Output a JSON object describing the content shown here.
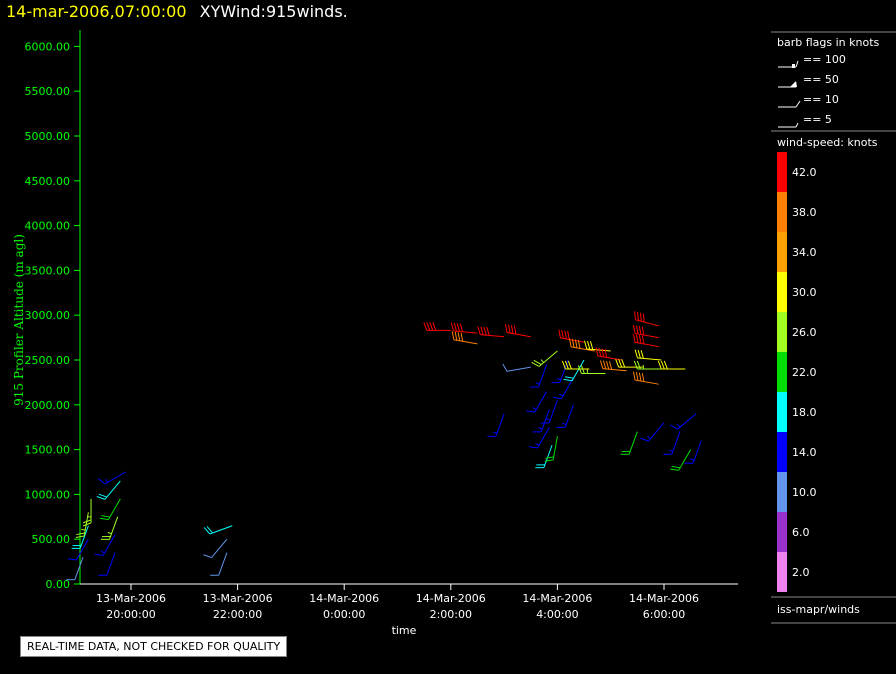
{
  "header": {
    "timestamp": "14-mar-2006,07:00:00",
    "title": "XYWind:915winds."
  },
  "notice": "REAL-TIME DATA, NOT CHECKED FOR QUALITY",
  "legend": {
    "barb_title": "barb flags in knots",
    "barb_items": [
      "== 100",
      "== 50",
      "== 10",
      "== 5"
    ],
    "speed_title": "wind-speed: knots",
    "speed_levels": [
      {
        "label": "42.0",
        "color": "#ff0000"
      },
      {
        "label": "38.0",
        "color": "#ff7f00"
      },
      {
        "label": "34.0",
        "color": "#ff9f00"
      },
      {
        "label": "30.0",
        "color": "#ffff00"
      },
      {
        "label": "26.0",
        "color": "#a0ff20"
      },
      {
        "label": "22.0",
        "color": "#00dd00"
      },
      {
        "label": "18.0",
        "color": "#00ffff"
      },
      {
        "label": "14.0",
        "color": "#0000ff"
      },
      {
        "label": "10.0",
        "color": "#6495ed"
      },
      {
        "label": "6.0",
        "color": "#9932cc"
      },
      {
        "label": "2.0",
        "color": "#ee82ee"
      }
    ],
    "source": "iss-mapr/winds"
  },
  "chart_data": {
    "type": "scatter",
    "ylabel": "915 Profiler Altitude (m agl)",
    "xlabel": "time",
    "ylim": [
      0,
      6200
    ],
    "yticks": [
      "0.00",
      "500.00",
      "1000.00",
      "1500.00",
      "2000.00",
      "2500.00",
      "3000.00",
      "3500.00",
      "4000.00",
      "4500.00",
      "5000.00",
      "5500.00",
      "6000.00"
    ],
    "xticks": [
      {
        "hours": 20,
        "date": "13-Mar-2006",
        "time": "20:00:00"
      },
      {
        "hours": 22,
        "date": "13-Mar-2006",
        "time": "22:00:00"
      },
      {
        "hours": 24,
        "date": "14-Mar-2006",
        "time": "0:00:00"
      },
      {
        "hours": 26,
        "date": "14-Mar-2006",
        "time": "2:00:00"
      },
      {
        "hours": 28,
        "date": "14-Mar-2006",
        "time": "4:00:00"
      },
      {
        "hours": 30,
        "date": "14-Mar-2006",
        "time": "6:00:00"
      }
    ],
    "xlim": [
      19.0,
      31.5
    ],
    "barbs": [
      {
        "t": 19.1,
        "alt": 300,
        "spd": 10,
        "dir": 200
      },
      {
        "t": 19.2,
        "alt": 500,
        "spd": 12,
        "dir": 210
      },
      {
        "t": 19.2,
        "alt": 650,
        "spd": 18,
        "dir": 200
      },
      {
        "t": 19.2,
        "alt": 800,
        "spd": 24,
        "dir": 190
      },
      {
        "t": 19.25,
        "alt": 950,
        "spd": 24,
        "dir": 180
      },
      {
        "t": 19.7,
        "alt": 350,
        "spd": 12,
        "dir": 200
      },
      {
        "t": 19.7,
        "alt": 550,
        "spd": 14,
        "dir": 210
      },
      {
        "t": 19.75,
        "alt": 750,
        "spd": 24,
        "dir": 200
      },
      {
        "t": 19.8,
        "alt": 950,
        "spd": 20,
        "dir": 210
      },
      {
        "t": 19.8,
        "alt": 1150,
        "spd": 18,
        "dir": 220
      },
      {
        "t": 19.9,
        "alt": 1250,
        "spd": 14,
        "dir": 240
      },
      {
        "t": 21.8,
        "alt": 350,
        "spd": 8,
        "dir": 200
      },
      {
        "t": 21.8,
        "alt": 500,
        "spd": 10,
        "dir": 220
      },
      {
        "t": 21.9,
        "alt": 650,
        "spd": 18,
        "dir": 250
      },
      {
        "t": 26.0,
        "alt": 2830,
        "spd": 42,
        "dir": 270
      },
      {
        "t": 26.5,
        "alt": 2800,
        "spd": 42,
        "dir": 275
      },
      {
        "t": 26.5,
        "alt": 2680,
        "spd": 38,
        "dir": 280
      },
      {
        "t": 27.0,
        "alt": 2760,
        "spd": 42,
        "dir": 275
      },
      {
        "t": 27.5,
        "alt": 2760,
        "spd": 42,
        "dir": 280
      },
      {
        "t": 27.8,
        "alt": 2450,
        "spd": 14,
        "dir": 200
      },
      {
        "t": 27.8,
        "alt": 2150,
        "spd": 14,
        "dir": 210
      },
      {
        "t": 27.85,
        "alt": 1950,
        "spd": 14,
        "dir": 200
      },
      {
        "t": 27.85,
        "alt": 1750,
        "spd": 14,
        "dir": 210
      },
      {
        "t": 27.9,
        "alt": 1550,
        "spd": 18,
        "dir": 200
      },
      {
        "t": 27.5,
        "alt": 2420,
        "spd": 8,
        "dir": 260
      },
      {
        "t": 27.0,
        "alt": 1900,
        "spd": 14,
        "dir": 200
      },
      {
        "t": 28.0,
        "alt": 2600,
        "spd": 24,
        "dir": 230
      },
      {
        "t": 28.0,
        "alt": 2050,
        "spd": 14,
        "dir": 200
      },
      {
        "t": 28.0,
        "alt": 1650,
        "spd": 22,
        "dir": 190
      },
      {
        "t": 28.2,
        "alt": 2500,
        "spd": 14,
        "dir": 200
      },
      {
        "t": 28.3,
        "alt": 2300,
        "spd": 14,
        "dir": 210
      },
      {
        "t": 28.3,
        "alt": 2000,
        "spd": 14,
        "dir": 200
      },
      {
        "t": 28.5,
        "alt": 2500,
        "spd": 18,
        "dir": 210
      },
      {
        "t": 28.5,
        "alt": 2700,
        "spd": 42,
        "dir": 280
      },
      {
        "t": 28.6,
        "alt": 2400,
        "spd": 30,
        "dir": 270
      },
      {
        "t": 28.7,
        "alt": 2600,
        "spd": 38,
        "dir": 280
      },
      {
        "t": 28.9,
        "alt": 2350,
        "spd": 26,
        "dir": 270
      },
      {
        "t": 29.0,
        "alt": 2600,
        "spd": 30,
        "dir": 275
      },
      {
        "t": 29.2,
        "alt": 2500,
        "spd": 42,
        "dir": 280
      },
      {
        "t": 29.3,
        "alt": 2380,
        "spd": 38,
        "dir": 275
      },
      {
        "t": 29.6,
        "alt": 2420,
        "spd": 30,
        "dir": 270
      },
      {
        "t": 29.5,
        "alt": 1700,
        "spd": 22,
        "dir": 200
      },
      {
        "t": 29.9,
        "alt": 2880,
        "spd": 42,
        "dir": 285
      },
      {
        "t": 29.9,
        "alt": 2750,
        "spd": 42,
        "dir": 280
      },
      {
        "t": 29.9,
        "alt": 2650,
        "spd": 42,
        "dir": 280
      },
      {
        "t": 29.95,
        "alt": 2500,
        "spd": 30,
        "dir": 275
      },
      {
        "t": 29.95,
        "alt": 2400,
        "spd": 26,
        "dir": 270
      },
      {
        "t": 29.9,
        "alt": 2230,
        "spd": 38,
        "dir": 280
      },
      {
        "t": 30.0,
        "alt": 1800,
        "spd": 14,
        "dir": 220
      },
      {
        "t": 30.3,
        "alt": 1700,
        "spd": 14,
        "dir": 200
      },
      {
        "t": 30.4,
        "alt": 2400,
        "spd": 30,
        "dir": 270
      },
      {
        "t": 30.5,
        "alt": 1500,
        "spd": 22,
        "dir": 210
      },
      {
        "t": 30.6,
        "alt": 1900,
        "spd": 14,
        "dir": 230
      },
      {
        "t": 30.7,
        "alt": 1600,
        "spd": 14,
        "dir": 200
      }
    ]
  }
}
